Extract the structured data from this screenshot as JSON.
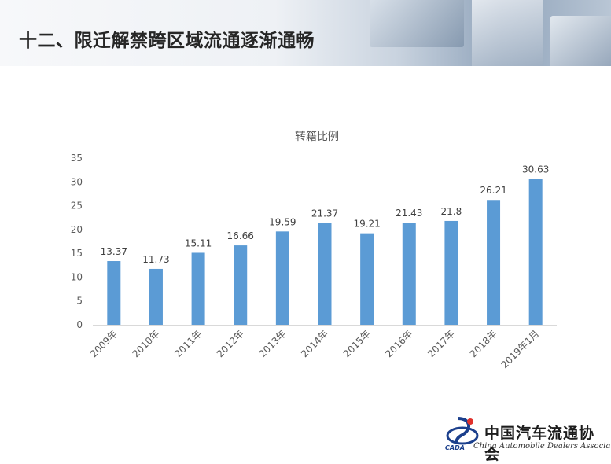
{
  "header": {
    "title": "十二、限迁解禁跨区域流通逐渐通畅"
  },
  "logo": {
    "name_cn": "中国汽车流通协会",
    "name_en": "China Automobile Dealers Association",
    "abbr": "CADA"
  },
  "chart_data": {
    "type": "bar",
    "title": "转籍比例",
    "categories": [
      "2009年",
      "2010年",
      "2011年",
      "2012年",
      "2013年",
      "2014年",
      "2015年",
      "2016年",
      "2017年",
      "2018年",
      "2019年1月"
    ],
    "values": [
      13.37,
      11.73,
      15.11,
      16.66,
      19.59,
      21.37,
      19.21,
      21.43,
      21.8,
      26.21,
      30.63
    ],
    "value_labels": [
      "13.37",
      "11.73",
      "15.11",
      "16.66",
      "19.59",
      "21.37",
      "19.21",
      "21.43",
      "21.8",
      "26.21",
      "30.63"
    ],
    "y_ticks": [
      0,
      5,
      10,
      15,
      20,
      25,
      30,
      35
    ],
    "ylim": [
      0,
      35
    ],
    "grid": false,
    "legend": "none",
    "bar_color": "#5b9bd5",
    "axis_color": "#d9d9d9",
    "text_color": "#595959"
  }
}
